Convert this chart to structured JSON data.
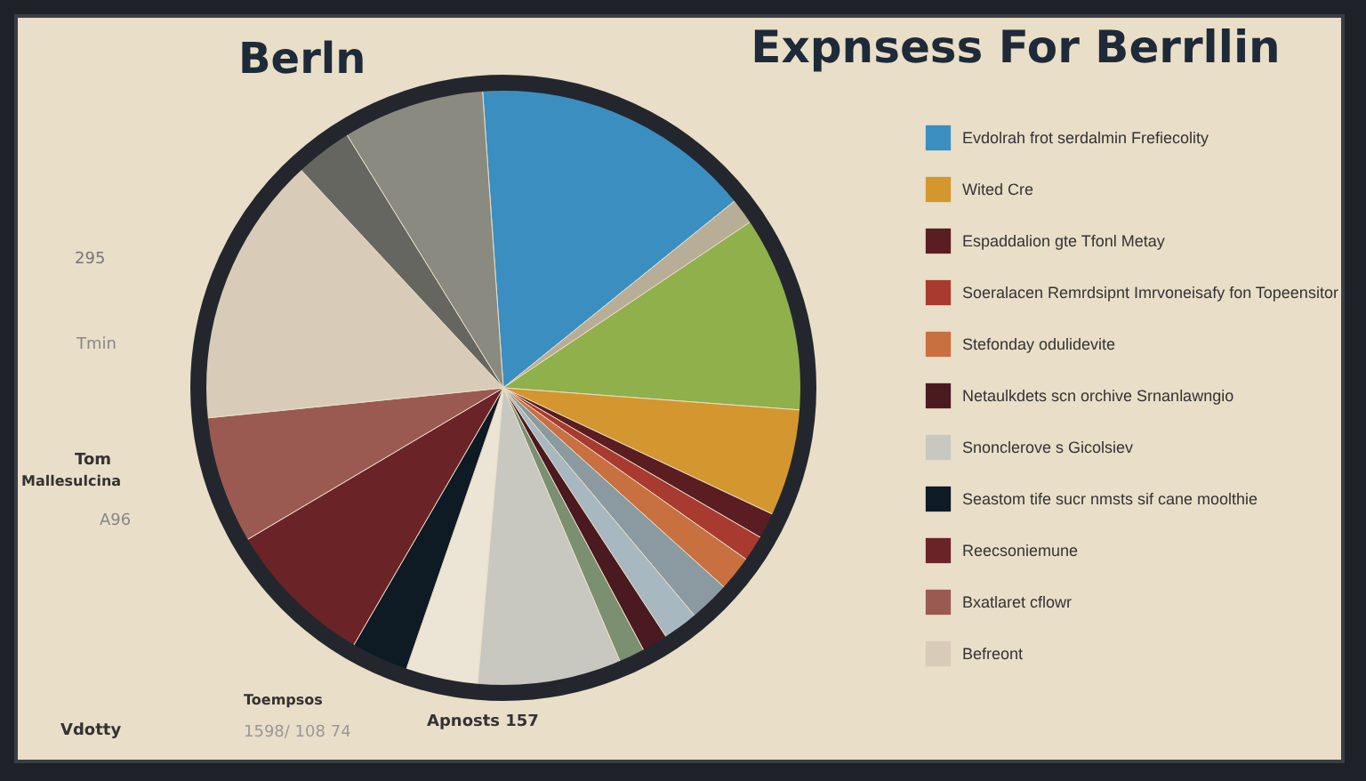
{
  "chart_data": {
    "type": "pie",
    "title": "Expnsess For Berrllin",
    "categories": [
      "Evdolrah frot serdalmin Frefiecolity",
      null,
      null,
      "Wited Cre",
      "Espaddalion gte Tfonl Metay",
      "Soeralacen Remrdsipnt Imrvoneisafy fon Topeensitor",
      "Stefonday odulidevite",
      null,
      null,
      "Netaulkdets scn orchive Srnanlawngio",
      null,
      "Snonclerove s Gicolsiev",
      null,
      "Seastom tife sucr nmsts sif cane moolthie",
      "Reecsoniemune",
      "Bxatlaret cflowr",
      "Befreont",
      null,
      null
    ],
    "values": [
      15.3,
      1.4,
      10.6,
      5.8,
      1.4,
      1.4,
      1.9,
      2.2,
      1.9,
      1.4,
      1.4,
      7.8,
      3.9,
      3.1,
      8.1,
      6.9,
      14.7,
      3.1,
      7.7
    ],
    "colors": [
      "#3a8fc0",
      "#b8ae98",
      "#8fb04a",
      "#d4962e",
      "#5a1e22",
      "#a83a30",
      "#c87040",
      "#8a9aa0",
      "#a8b8c0",
      "#4a1a20",
      "#7a9070",
      "#c8c8c0",
      "#ece4d4",
      "#0e1a24",
      "#6a2428",
      "#9a5a52",
      "#d8ccb8",
      "#666660",
      "#8a8a80"
    ],
    "legend": "right",
    "annotations": [
      "Berln",
      "295",
      "Tmin",
      "Tom",
      "Mallesulcina",
      "A96",
      "Vdotty",
      "Toempsos",
      "1598/ 108 74",
      "Apnosts 157"
    ]
  }
}
